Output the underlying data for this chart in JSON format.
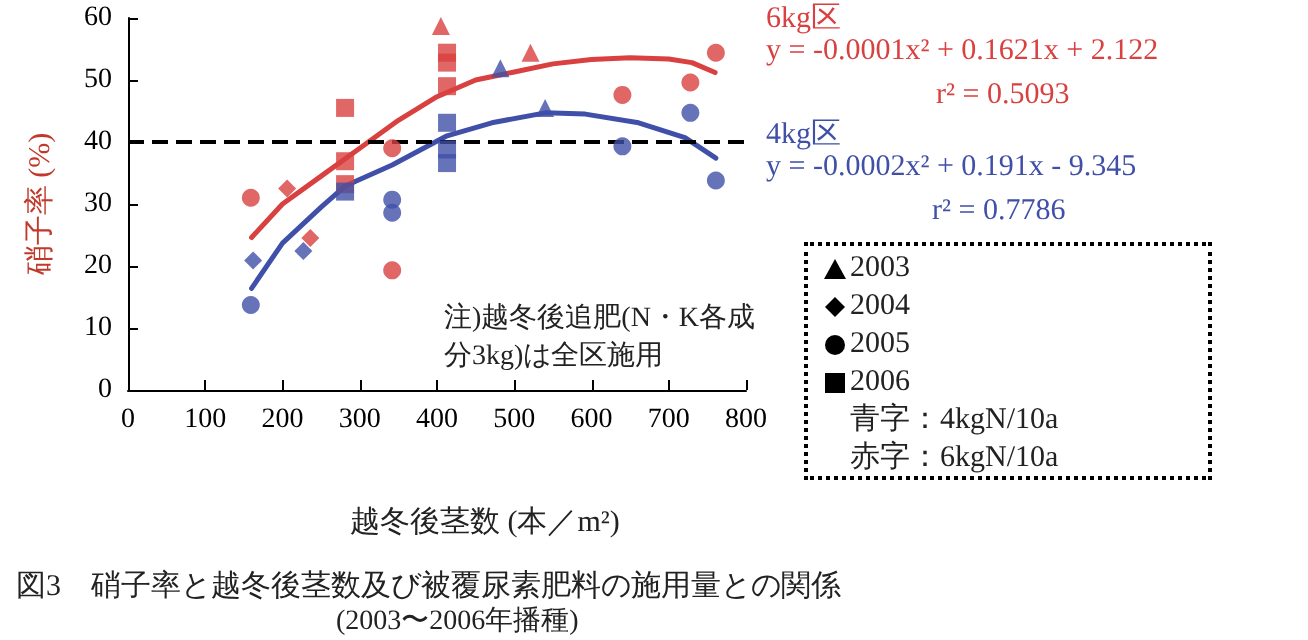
{
  "chart_data": {
    "type": "scatter",
    "title": "図3　硝子率と越冬後茎数及び被覆尿素肥料の施用量との関係",
    "subtitle": "(2003〜2006年播種)",
    "xlabel": "越冬後茎数 (本／m²)",
    "ylabel": "硝子率 (%)",
    "xlim": [
      0,
      800
    ],
    "xticks": [
      0,
      100,
      200,
      300,
      400,
      500,
      600,
      700,
      800
    ],
    "ylim": [
      0,
      60
    ],
    "yticks": [
      0,
      10,
      20,
      30,
      40,
      50,
      60
    ],
    "grid": false,
    "ref_lines": [
      {
        "axis": "y",
        "value": 40,
        "color": "#000000",
        "line_style": "dashed"
      }
    ],
    "annotations": [
      "6kg区",
      "y = -0.0001x² + 0.1621x + 2.122",
      "r² = 0.5093",
      "4kg区",
      "y = -0.0002x² + 0.191x - 9.345",
      "r² = 0.7786",
      "青字：4kgN/10a",
      "赤字：6kgN/10a",
      "注)越冬後追肥(N・K各成分3kg)は全区施用",
      "2003",
      "2004",
      "2005",
      "2006"
    ],
    "series": [
      {
        "marker": "triangle",
        "x": [
          405,
          521,
          482,
          540
        ],
        "values": [
          58.7,
          54.4,
          51.9,
          45.5
        ],
        "colors": [
          "#d94040",
          "#d94040",
          "#4050a8",
          "#4050a8"
        ]
      },
      {
        "marker": "diamond",
        "x": [
          206,
          236,
          162,
          227
        ],
        "values": [
          32.5,
          24.5,
          20.9,
          22.4
        ],
        "colors": [
          "#d94040",
          "#d94040",
          "#4050a8",
          "#4050a8"
        ]
      },
      {
        "marker": "circle",
        "x": [
          159,
          342,
          342,
          640,
          728,
          761,
          159,
          342,
          342,
          640,
          728,
          761
        ],
        "values": [
          31.0,
          39.0,
          19.3,
          47.6,
          49.6,
          54.4,
          13.7,
          30.7,
          28.6,
          39.3,
          44.7,
          33.8
        ],
        "colors": [
          "#d94040",
          "#d94040",
          "#d94040",
          "#d94040",
          "#d94040",
          "#d94040",
          "#4050a8",
          "#4050a8",
          "#4050a8",
          "#4050a8",
          "#4050a8",
          "#4050a8"
        ]
      },
      {
        "marker": "square",
        "x": [
          281,
          281,
          281,
          413,
          413,
          413,
          281,
          413,
          413,
          413
        ],
        "values": [
          45.5,
          36.9,
          33.2,
          54.4,
          52.8,
          49.0,
          32.0,
          43.1,
          38.8,
          36.6
        ],
        "colors": [
          "#d94040",
          "#d94040",
          "#d94040",
          "#d94040",
          "#d94040",
          "#d94040",
          "#4050a8",
          "#4050a8",
          "#4050a8",
          "#4050a8"
        ]
      },
      {
        "type": "line",
        "color": "#d94040",
        "marker": "none",
        "x": [
          160,
          200,
          250,
          300,
          350,
          400,
          450,
          500,
          550,
          600,
          650,
          700,
          730,
          760
        ],
        "values": [
          24.6,
          30,
          34.5,
          39,
          43.5,
          47.3,
          50,
          51.3,
          52.6,
          53.3,
          53.6,
          53.4,
          52.8,
          51.2
        ]
      },
      {
        "type": "line",
        "color": "#4050a8",
        "marker": "none",
        "x": [
          160,
          200,
          250,
          281,
          342,
          413,
          471,
          540,
          592,
          661,
          721,
          761
        ],
        "values": [
          16.4,
          23.7,
          29.5,
          32.9,
          36.3,
          41,
          43.1,
          44.7,
          44.5,
          43.1,
          40.7,
          37.4
        ]
      }
    ]
  }
}
